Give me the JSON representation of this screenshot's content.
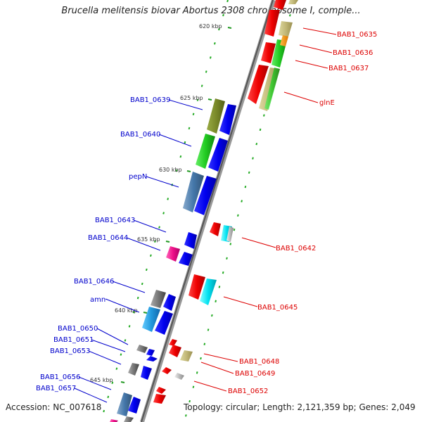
{
  "title": "Brucella melitensis biovar Abortus 2308 chromosome I, comple...",
  "footer": {
    "accession": "Accession: NC_007618",
    "topology": "Topology: circular; Length: 2,121,359 bp; Genes: 2,049"
  },
  "ticks": [
    "620 kbp",
    "625 kbp",
    "630 kbp",
    "635 kbp",
    "640 kbp",
    "645 kbp"
  ],
  "forward_strand_labels": [
    "BAB1_0635",
    "BAB1_0636",
    "BAB1_0637",
    "glnE",
    "BAB1_0642",
    "BAB1_0645",
    "BAB1_0648",
    "BAB1_0649",
    "BAB1_0652"
  ],
  "reverse_strand_labels": [
    "BAB1_0639",
    "BAB1_0640",
    "pepN",
    "BAB1_0643",
    "BAB1_0644",
    "BAB1_0646",
    "amn",
    "BAB1_0650",
    "BAB1_0651",
    "BAB1_0653",
    "BAB1_0656",
    "BAB1_0657"
  ],
  "colors": {
    "forward_label": "#dd0000",
    "reverse_label": "#0000cc",
    "tick_mark": "#229922",
    "backbone": "#888888"
  }
}
